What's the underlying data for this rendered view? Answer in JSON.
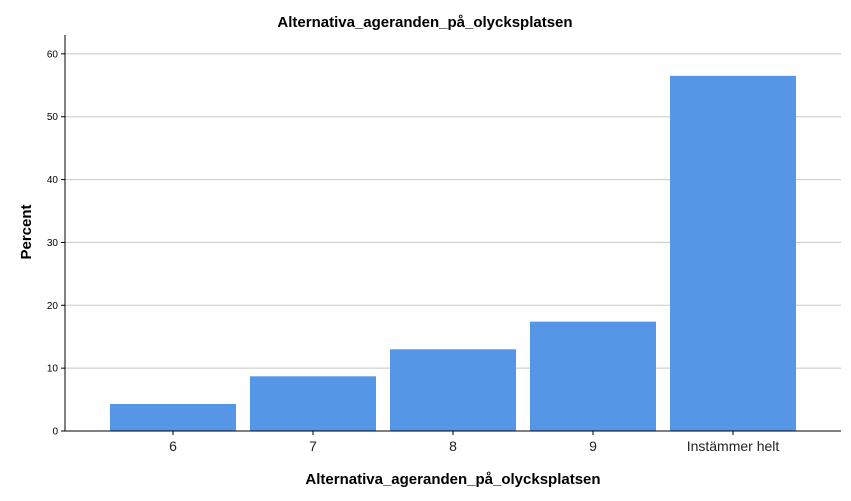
{
  "chart_data": {
    "type": "bar",
    "title": "Alternativa_ageranden_på_olycksplatsen",
    "xlabel": "Alternativa_ageranden_på_olycksplatsen",
    "ylabel": "Percent",
    "categories": [
      "6",
      "7",
      "8",
      "9",
      "Instämmer helt"
    ],
    "values": [
      4.3,
      8.7,
      13.0,
      17.4,
      56.5
    ],
    "ylim": [
      0,
      63
    ],
    "yticks": [
      "0",
      "10",
      "20",
      "30",
      "40",
      "50",
      "60"
    ],
    "grid": true,
    "bar_color": "#5596e6"
  }
}
